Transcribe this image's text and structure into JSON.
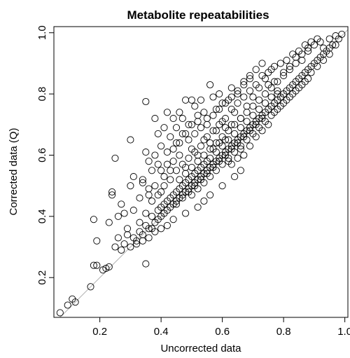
{
  "chart_data": {
    "type": "scatter",
    "title": "Metabolite repeatabilities",
    "xlabel": "Uncorrected data",
    "ylabel": "Corrected data (Q)",
    "xlim": [
      0.05,
      1.01
    ],
    "ylim": [
      0.07,
      1.02
    ],
    "xticks": [
      0.2,
      0.4,
      0.6,
      0.8,
      1.0
    ],
    "xtick_labels": [
      "0.2",
      "0.4",
      "0.6",
      "0.8",
      "1.0"
    ],
    "yticks": [
      0.2,
      0.4,
      0.6,
      0.8,
      1.0
    ],
    "ytick_labels": [
      "0.2",
      "0.4",
      "0.6",
      "0.8",
      "1.0"
    ],
    "grid": false,
    "reference_line": "y = x",
    "marker": "open-circle",
    "points": [
      [
        0.07,
        0.085
      ],
      [
        0.095,
        0.11
      ],
      [
        0.11,
        0.13
      ],
      [
        0.12,
        0.12
      ],
      [
        0.17,
        0.17
      ],
      [
        0.18,
        0.24
      ],
      [
        0.19,
        0.24
      ],
      [
        0.18,
        0.39
      ],
      [
        0.19,
        0.32
      ],
      [
        0.21,
        0.225
      ],
      [
        0.22,
        0.23
      ],
      [
        0.23,
        0.235
      ],
      [
        0.23,
        0.38
      ],
      [
        0.24,
        0.47
      ],
      [
        0.24,
        0.48
      ],
      [
        0.25,
        0.59
      ],
      [
        0.26,
        0.33
      ],
      [
        0.25,
        0.3
      ],
      [
        0.27,
        0.29
      ],
      [
        0.28,
        0.31
      ],
      [
        0.29,
        0.36
      ],
      [
        0.29,
        0.34
      ],
      [
        0.3,
        0.65
      ],
      [
        0.3,
        0.5
      ],
      [
        0.28,
        0.41
      ],
      [
        0.27,
        0.44
      ],
      [
        0.26,
        0.4
      ],
      [
        0.31,
        0.42
      ],
      [
        0.31,
        0.53
      ],
      [
        0.33,
        0.46
      ],
      [
        0.34,
        0.51
      ],
      [
        0.34,
        0.52
      ],
      [
        0.35,
        0.775
      ],
      [
        0.35,
        0.245
      ],
      [
        0.35,
        0.61
      ],
      [
        0.36,
        0.58
      ],
      [
        0.36,
        0.49
      ],
      [
        0.37,
        0.55
      ],
      [
        0.38,
        0.6
      ],
      [
        0.38,
        0.72
      ],
      [
        0.39,
        0.67
      ],
      [
        0.39,
        0.57
      ],
      [
        0.4,
        0.63
      ],
      [
        0.4,
        0.48
      ],
      [
        0.41,
        0.53
      ],
      [
        0.41,
        0.69
      ],
      [
        0.42,
        0.61
      ],
      [
        0.42,
        0.74
      ],
      [
        0.43,
        0.66
      ],
      [
        0.43,
        0.55
      ],
      [
        0.44,
        0.58
      ],
      [
        0.44,
        0.72
      ],
      [
        0.45,
        0.64
      ],
      [
        0.45,
        0.69
      ],
      [
        0.46,
        0.74
      ],
      [
        0.46,
        0.6
      ],
      [
        0.47,
        0.72
      ],
      [
        0.47,
        0.67
      ],
      [
        0.48,
        0.78
      ],
      [
        0.48,
        0.56
      ],
      [
        0.49,
        0.65
      ],
      [
        0.49,
        0.7
      ],
      [
        0.5,
        0.78
      ],
      [
        0.5,
        0.62
      ],
      [
        0.51,
        0.76
      ],
      [
        0.51,
        0.67
      ],
      [
        0.52,
        0.73
      ],
      [
        0.52,
        0.6
      ],
      [
        0.53,
        0.69
      ],
      [
        0.53,
        0.78
      ],
      [
        0.54,
        0.65
      ],
      [
        0.55,
        0.72
      ],
      [
        0.56,
        0.83
      ],
      [
        0.56,
        0.64
      ],
      [
        0.57,
        0.79
      ],
      [
        0.58,
        0.68
      ],
      [
        0.58,
        0.75
      ],
      [
        0.59,
        0.8
      ],
      [
        0.6,
        0.71
      ],
      [
        0.6,
        0.77
      ],
      [
        0.61,
        0.65
      ],
      [
        0.62,
        0.78
      ],
      [
        0.63,
        0.7
      ],
      [
        0.63,
        0.82
      ],
      [
        0.64,
        0.74
      ],
      [
        0.65,
        0.8
      ],
      [
        0.66,
        0.72
      ],
      [
        0.67,
        0.83
      ],
      [
        0.68,
        0.76
      ],
      [
        0.69,
        0.86
      ],
      [
        0.7,
        0.79
      ],
      [
        0.71,
        0.88
      ],
      [
        0.72,
        0.82
      ],
      [
        0.73,
        0.9
      ],
      [
        0.74,
        0.85
      ],
      [
        0.75,
        0.83
      ],
      [
        0.76,
        0.88
      ],
      [
        0.77,
        0.84
      ],
      [
        0.78,
        0.8
      ],
      [
        0.8,
        0.86
      ],
      [
        0.82,
        0.88
      ],
      [
        0.84,
        0.9
      ],
      [
        0.86,
        0.91
      ],
      [
        0.88,
        0.94
      ],
      [
        0.9,
        0.96
      ],
      [
        0.92,
        0.97
      ],
      [
        0.93,
        0.95
      ],
      [
        0.95,
        0.98
      ],
      [
        0.97,
        0.99
      ],
      [
        0.99,
        0.995
      ],
      [
        0.3,
        0.3
      ],
      [
        0.32,
        0.32
      ],
      [
        0.34,
        0.34
      ],
      [
        0.36,
        0.36
      ],
      [
        0.38,
        0.38
      ],
      [
        0.4,
        0.4
      ],
      [
        0.42,
        0.42
      ],
      [
        0.44,
        0.44
      ],
      [
        0.46,
        0.46
      ],
      [
        0.48,
        0.48
      ],
      [
        0.5,
        0.5
      ],
      [
        0.52,
        0.52
      ],
      [
        0.54,
        0.54
      ],
      [
        0.56,
        0.56
      ],
      [
        0.58,
        0.58
      ],
      [
        0.6,
        0.6
      ],
      [
        0.62,
        0.62
      ],
      [
        0.64,
        0.64
      ],
      [
        0.66,
        0.66
      ],
      [
        0.68,
        0.68
      ],
      [
        0.7,
        0.7
      ],
      [
        0.72,
        0.72
      ],
      [
        0.74,
        0.74
      ],
      [
        0.76,
        0.76
      ],
      [
        0.78,
        0.78
      ],
      [
        0.8,
        0.8
      ],
      [
        0.82,
        0.82
      ],
      [
        0.84,
        0.84
      ],
      [
        0.86,
        0.86
      ],
      [
        0.88,
        0.88
      ],
      [
        0.9,
        0.9
      ],
      [
        0.92,
        0.92
      ],
      [
        0.94,
        0.94
      ],
      [
        0.96,
        0.96
      ],
      [
        0.98,
        0.98
      ],
      [
        0.45,
        0.44
      ],
      [
        0.47,
        0.46
      ],
      [
        0.49,
        0.48
      ],
      [
        0.51,
        0.5
      ],
      [
        0.53,
        0.52
      ],
      [
        0.55,
        0.54
      ],
      [
        0.57,
        0.56
      ],
      [
        0.59,
        0.58
      ],
      [
        0.61,
        0.6
      ],
      [
        0.63,
        0.62
      ],
      [
        0.65,
        0.64
      ],
      [
        0.67,
        0.66
      ],
      [
        0.69,
        0.68
      ],
      [
        0.71,
        0.7
      ],
      [
        0.73,
        0.72
      ],
      [
        0.4,
        0.43
      ],
      [
        0.42,
        0.45
      ],
      [
        0.44,
        0.47
      ],
      [
        0.46,
        0.49
      ],
      [
        0.48,
        0.51
      ],
      [
        0.5,
        0.53
      ],
      [
        0.52,
        0.55
      ],
      [
        0.54,
        0.57
      ],
      [
        0.56,
        0.59
      ],
      [
        0.58,
        0.61
      ],
      [
        0.6,
        0.63
      ],
      [
        0.62,
        0.65
      ],
      [
        0.64,
        0.67
      ],
      [
        0.66,
        0.69
      ],
      [
        0.68,
        0.71
      ],
      [
        0.7,
        0.73
      ],
      [
        0.72,
        0.75
      ],
      [
        0.74,
        0.77
      ],
      [
        0.76,
        0.79
      ],
      [
        0.78,
        0.81
      ],
      [
        0.37,
        0.4
      ],
      [
        0.39,
        0.42
      ],
      [
        0.41,
        0.44
      ],
      [
        0.43,
        0.46
      ],
      [
        0.45,
        0.48
      ],
      [
        0.47,
        0.5
      ],
      [
        0.49,
        0.52
      ],
      [
        0.51,
        0.54
      ],
      [
        0.53,
        0.56
      ],
      [
        0.55,
        0.58
      ],
      [
        0.5,
        0.47
      ],
      [
        0.52,
        0.49
      ],
      [
        0.54,
        0.51
      ],
      [
        0.56,
        0.53
      ],
      [
        0.58,
        0.55
      ],
      [
        0.6,
        0.57
      ],
      [
        0.62,
        0.59
      ],
      [
        0.64,
        0.61
      ],
      [
        0.66,
        0.63
      ],
      [
        0.68,
        0.65
      ],
      [
        0.7,
        0.67
      ],
      [
        0.72,
        0.69
      ],
      [
        0.74,
        0.71
      ],
      [
        0.76,
        0.73
      ],
      [
        0.78,
        0.75
      ],
      [
        0.8,
        0.77
      ],
      [
        0.82,
        0.79
      ],
      [
        0.84,
        0.81
      ],
      [
        0.86,
        0.83
      ],
      [
        0.88,
        0.85
      ],
      [
        0.33,
        0.38
      ],
      [
        0.35,
        0.41
      ],
      [
        0.37,
        0.45
      ],
      [
        0.39,
        0.47
      ],
      [
        0.41,
        0.5
      ],
      [
        0.43,
        0.52
      ],
      [
        0.45,
        0.55
      ],
      [
        0.47,
        0.57
      ],
      [
        0.49,
        0.59
      ],
      [
        0.51,
        0.61
      ],
      [
        0.53,
        0.63
      ],
      [
        0.55,
        0.66
      ],
      [
        0.57,
        0.68
      ],
      [
        0.59,
        0.7
      ],
      [
        0.61,
        0.72
      ],
      [
        0.63,
        0.75
      ],
      [
        0.65,
        0.77
      ],
      [
        0.67,
        0.79
      ],
      [
        0.69,
        0.81
      ],
      [
        0.71,
        0.83
      ],
      [
        0.36,
        0.47
      ],
      [
        0.38,
        0.5
      ],
      [
        0.4,
        0.55
      ],
      [
        0.42,
        0.57
      ],
      [
        0.44,
        0.62
      ],
      [
        0.46,
        0.64
      ],
      [
        0.48,
        0.67
      ],
      [
        0.5,
        0.7
      ],
      [
        0.52,
        0.71
      ],
      [
        0.54,
        0.74
      ],
      [
        0.57,
        0.62
      ],
      [
        0.59,
        0.64
      ],
      [
        0.61,
        0.69
      ],
      [
        0.62,
        0.58
      ],
      [
        0.63,
        0.57
      ],
      [
        0.65,
        0.59
      ],
      [
        0.66,
        0.62
      ],
      [
        0.67,
        0.6
      ],
      [
        0.69,
        0.63
      ],
      [
        0.71,
        0.66
      ],
      [
        0.73,
        0.68
      ],
      [
        0.75,
        0.7
      ],
      [
        0.77,
        0.74
      ],
      [
        0.79,
        0.76
      ],
      [
        0.81,
        0.78
      ],
      [
        0.83,
        0.8
      ],
      [
        0.85,
        0.82
      ],
      [
        0.87,
        0.84
      ],
      [
        0.89,
        0.87
      ],
      [
        0.91,
        0.89
      ],
      [
        0.93,
        0.91
      ],
      [
        0.95,
        0.93
      ],
      [
        0.97,
        0.96
      ],
      [
        0.64,
        0.53
      ],
      [
        0.66,
        0.55
      ],
      [
        0.6,
        0.5
      ],
      [
        0.56,
        0.47
      ],
      [
        0.54,
        0.45
      ],
      [
        0.52,
        0.43
      ],
      [
        0.48,
        0.41
      ],
      [
        0.44,
        0.39
      ],
      [
        0.42,
        0.37
      ],
      [
        0.4,
        0.36
      ],
      [
        0.38,
        0.35
      ],
      [
        0.36,
        0.33
      ],
      [
        0.34,
        0.32
      ],
      [
        0.32,
        0.31
      ],
      [
        0.31,
        0.33
      ],
      [
        0.33,
        0.35
      ],
      [
        0.35,
        0.37
      ],
      [
        0.37,
        0.36
      ],
      [
        0.39,
        0.39
      ],
      [
        0.41,
        0.41
      ],
      [
        0.43,
        0.43
      ],
      [
        0.45,
        0.45
      ],
      [
        0.47,
        0.47
      ],
      [
        0.49,
        0.49
      ],
      [
        0.51,
        0.51
      ],
      [
        0.53,
        0.53
      ],
      [
        0.55,
        0.55
      ],
      [
        0.57,
        0.57
      ],
      [
        0.59,
        0.59
      ],
      [
        0.61,
        0.61
      ],
      [
        0.63,
        0.63
      ],
      [
        0.65,
        0.65
      ],
      [
        0.67,
        0.67
      ],
      [
        0.69,
        0.69
      ],
      [
        0.71,
        0.71
      ],
      [
        0.73,
        0.73
      ],
      [
        0.75,
        0.75
      ],
      [
        0.77,
        0.77
      ],
      [
        0.79,
        0.79
      ],
      [
        0.81,
        0.81
      ],
      [
        0.83,
        0.83
      ],
      [
        0.85,
        0.85
      ],
      [
        0.87,
        0.87
      ],
      [
        0.89,
        0.89
      ],
      [
        0.91,
        0.91
      ],
      [
        0.93,
        0.93
      ],
      [
        0.95,
        0.95
      ],
      [
        0.46,
        0.52
      ],
      [
        0.48,
        0.54
      ],
      [
        0.5,
        0.56
      ],
      [
        0.52,
        0.58
      ],
      [
        0.54,
        0.6
      ],
      [
        0.56,
        0.62
      ],
      [
        0.58,
        0.64
      ],
      [
        0.6,
        0.66
      ],
      [
        0.62,
        0.68
      ],
      [
        0.64,
        0.7
      ],
      [
        0.66,
        0.72
      ],
      [
        0.68,
        0.74
      ],
      [
        0.7,
        0.76
      ],
      [
        0.72,
        0.78
      ],
      [
        0.74,
        0.8
      ],
      [
        0.76,
        0.82
      ],
      [
        0.78,
        0.84
      ],
      [
        0.8,
        0.87
      ],
      [
        0.82,
        0.89
      ],
      [
        0.84,
        0.92
      ],
      [
        0.86,
        0.93
      ],
      [
        0.88,
        0.95
      ],
      [
        0.55,
        0.7
      ],
      [
        0.57,
        0.73
      ],
      [
        0.59,
        0.75
      ],
      [
        0.61,
        0.77
      ],
      [
        0.63,
        0.79
      ],
      [
        0.65,
        0.81
      ],
      [
        0.67,
        0.84
      ],
      [
        0.69,
        0.85
      ],
      [
        0.73,
        0.86
      ],
      [
        0.75,
        0.87
      ],
      [
        0.77,
        0.89
      ],
      [
        0.79,
        0.9
      ],
      [
        0.81,
        0.91
      ],
      [
        0.83,
        0.93
      ],
      [
        0.85,
        0.94
      ],
      [
        0.87,
        0.96
      ],
      [
        0.89,
        0.97
      ],
      [
        0.91,
        0.98
      ]
    ]
  }
}
